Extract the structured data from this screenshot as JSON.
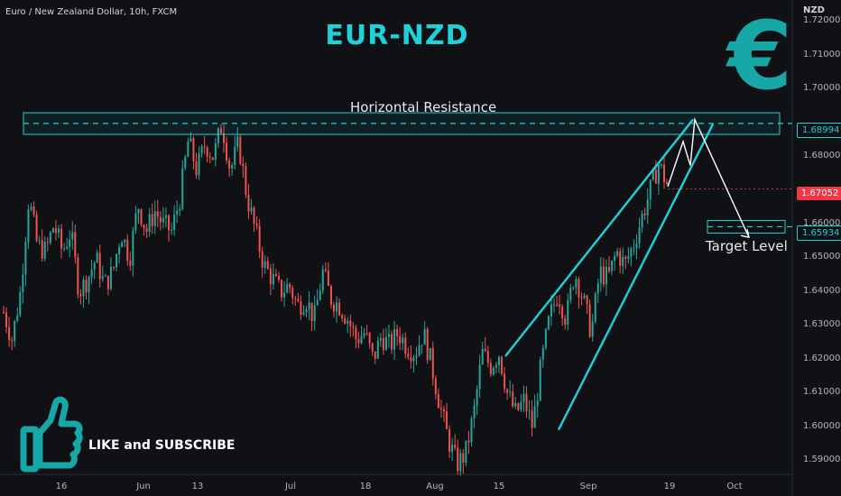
{
  "header": {
    "pair_label": "Euro / New Zealand Dollar, 10h, FXCM",
    "title": "EUR-NZD",
    "currency_label": "NZD",
    "euro_symbol": "€"
  },
  "annotations": {
    "resistance_label": "Horizontal Resistance",
    "target_label": "Target Level",
    "cta_text": "LIKE and SUBSCRIBE"
  },
  "price_tags": {
    "resistance": "1.68994",
    "current": "1.67052",
    "target": "1.65934"
  },
  "colors": {
    "background": "#0f1115",
    "accent": "#21d1d9",
    "up_candle": "#26a69a",
    "down_candle": "#ef5350",
    "current_price_tag": "#f23645"
  },
  "chart_data": {
    "type": "candlestick",
    "title": "EUR-NZD",
    "ylabel": "NZD",
    "ylim": [
      1.586,
      1.7265
    ],
    "yticks": [
      "1.72000",
      "1.71000",
      "1.70000",
      "1.68000",
      "1.66000",
      "1.65000",
      "1.64000",
      "1.63000",
      "1.62000",
      "1.61000",
      "1.60000",
      "1.59000"
    ],
    "xticks": [
      "16",
      "Jun",
      "13",
      "Jul",
      "18",
      "Aug",
      "15",
      "Sep",
      "19",
      "Oct"
    ],
    "close_path": [
      1.634,
      1.626,
      1.64,
      1.668,
      1.654,
      1.652,
      1.66,
      1.652,
      1.658,
      1.64,
      1.644,
      1.65,
      1.642,
      1.646,
      1.658,
      1.65,
      1.666,
      1.658,
      1.664,
      1.66,
      1.658,
      1.668,
      1.685,
      1.676,
      1.684,
      1.68,
      1.69,
      1.676,
      1.684,
      1.668,
      1.658,
      1.648,
      1.644,
      1.64,
      1.642,
      1.636,
      1.638,
      1.632,
      1.646,
      1.638,
      1.636,
      1.632,
      1.626,
      1.628,
      1.62,
      1.627,
      1.624,
      1.628,
      1.624,
      1.622,
      1.628,
      1.618,
      1.606,
      1.596,
      1.589,
      1.592,
      1.604,
      1.622,
      1.618,
      1.622,
      1.61,
      1.604,
      1.608,
      1.6,
      1.618,
      1.632,
      1.64,
      1.632,
      1.646,
      1.638,
      1.628,
      1.646,
      1.644,
      1.652,
      1.648,
      1.654,
      1.662,
      1.67,
      1.678,
      1.672
    ],
    "resistance_zone": [
      1.6867,
      1.6931
    ],
    "resistance_level": 1.68994,
    "current_price": 1.67052,
    "target_level": 1.65934,
    "rising_wedge": {
      "upper_line": [
        [
          560,
          1.621
        ],
        [
          768,
          1.6911
        ]
      ],
      "lower_line": [
        [
          619,
          1.5992
        ],
        [
          790,
          1.6897
        ]
      ]
    },
    "projection_path": [
      [
        740,
        1.6712
      ],
      [
        757,
        1.6846
      ],
      [
        765,
        1.6775
      ],
      [
        770,
        1.6911
      ],
      [
        830,
        1.6562
      ]
    ]
  }
}
